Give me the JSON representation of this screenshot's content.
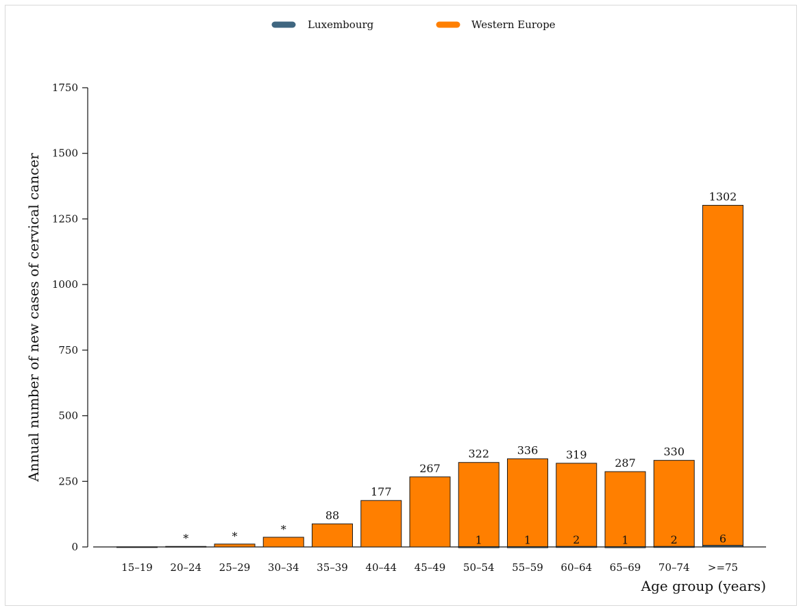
{
  "chart_data": {
    "type": "bar",
    "categories": [
      "15–19",
      "20–24",
      "25–29",
      "30–34",
      "35–39",
      "40–44",
      "45–49",
      "50–54",
      "55–59",
      "60–64",
      "65–69",
      "70–74",
      ">=75"
    ],
    "series": [
      {
        "name": "Western Europe",
        "color": "#ff7f00",
        "values": [
          0.5,
          2,
          11,
          37,
          88,
          177,
          267,
          322,
          336,
          319,
          287,
          330,
          1302
        ],
        "labels": [
          "",
          "*",
          "*",
          "*",
          "88",
          "177",
          "267",
          "322",
          "336",
          "319",
          "287",
          "330",
          "1302"
        ]
      },
      {
        "name": "Luxembourg",
        "color": "#3f6680",
        "values": [
          0,
          0,
          0,
          0,
          0,
          0,
          0,
          1,
          1,
          2,
          1,
          2,
          6
        ],
        "labels": [
          "",
          "",
          "",
          "",
          "",
          "",
          "",
          "1",
          "1",
          "2",
          "1",
          "2",
          "6"
        ]
      }
    ],
    "legend": [
      "Luxembourg",
      "Western Europe"
    ],
    "legend_position": "top",
    "xlabel": "Age group (years)",
    "ylabel": "Annual number of new cases of cervical cancer",
    "ylim": [
      0,
      1750
    ],
    "yticks": [
      0,
      250,
      500,
      750,
      1000,
      1250,
      1500,
      1750
    ],
    "grid": false
  }
}
